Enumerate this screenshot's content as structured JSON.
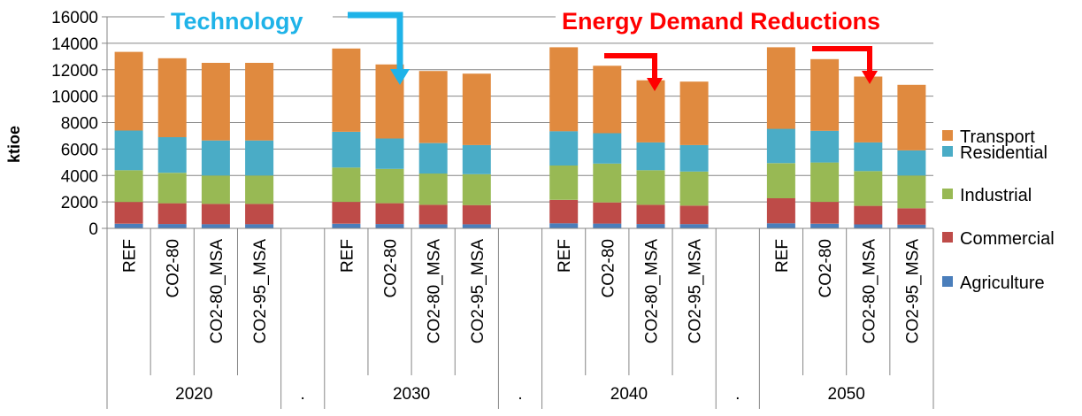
{
  "colors": {
    "Agriculture": "#4a7ebb",
    "Commercial": "#be4b48",
    "Industrial": "#98b954",
    "Residential": "#4aacc6",
    "Transport": "#e08a3f",
    "technology_arrow": "#1fb3e8",
    "demand_arrow": "#ff0000",
    "grid": "#868686"
  },
  "annotations": {
    "technology": "Technology",
    "energy_demand": "Energy Demand Reductions"
  },
  "chart_data": {
    "type": "bar",
    "stacked": true,
    "title": "",
    "ylabel": "ktioe",
    "xlabel": "",
    "ylim": [
      0,
      16000
    ],
    "yticks": [
      0,
      2000,
      4000,
      6000,
      8000,
      10000,
      12000,
      14000,
      16000
    ],
    "grid": true,
    "legend_position": "right",
    "groups": [
      {
        "label": "2020",
        "categories": [
          "REF",
          "CO2-80",
          "CO2-80_MSA",
          "CO2-95_MSA"
        ]
      },
      {
        "label": ".",
        "categories": [
          ""
        ]
      },
      {
        "label": "2030",
        "categories": [
          "REF",
          "CO2-80",
          "CO2-80_MSA",
          "CO2-95_MSA"
        ]
      },
      {
        "label": ".",
        "categories": [
          ""
        ]
      },
      {
        "label": "2040",
        "categories": [
          "REF",
          "CO2-80",
          "CO2-80_MSA",
          "CO2-95_MSA"
        ]
      },
      {
        "label": ".",
        "categories": [
          ""
        ]
      },
      {
        "label": "2050",
        "categories": [
          "REF",
          "CO2-80",
          "CO2-80_MSA",
          "CO2-95_MSA"
        ]
      }
    ],
    "series": [
      {
        "name": "Agriculture",
        "values": [
          350,
          330,
          320,
          320,
          null,
          350,
          330,
          310,
          310,
          null,
          380,
          360,
          330,
          320,
          null,
          380,
          350,
          300,
          280
        ]
      },
      {
        "name": "Commercial",
        "values": [
          1650,
          1570,
          1530,
          1530,
          null,
          1650,
          1570,
          1470,
          1450,
          null,
          1770,
          1600,
          1450,
          1400,
          null,
          1900,
          1650,
          1400,
          1240
        ]
      },
      {
        "name": "Industrial",
        "values": [
          2400,
          2300,
          2150,
          2150,
          null,
          2600,
          2600,
          2370,
          2340,
          null,
          2600,
          2940,
          2620,
          2580,
          null,
          2650,
          2980,
          2630,
          2480
        ]
      },
      {
        "name": "Residential",
        "values": [
          3000,
          2700,
          2650,
          2650,
          null,
          2700,
          2300,
          2300,
          2200,
          null,
          2600,
          2300,
          2100,
          2000,
          null,
          2600,
          2400,
          2170,
          1900
        ]
      },
      {
        "name": "Transport",
        "values": [
          5950,
          5970,
          5870,
          5870,
          null,
          6300,
          5600,
          5450,
          5400,
          null,
          6350,
          5100,
          4700,
          4800,
          null,
          6170,
          5420,
          4980,
          4960
        ]
      }
    ],
    "legend_order": [
      "Transport",
      "Residential",
      "Industrial",
      "Commercial",
      "Agriculture"
    ]
  }
}
